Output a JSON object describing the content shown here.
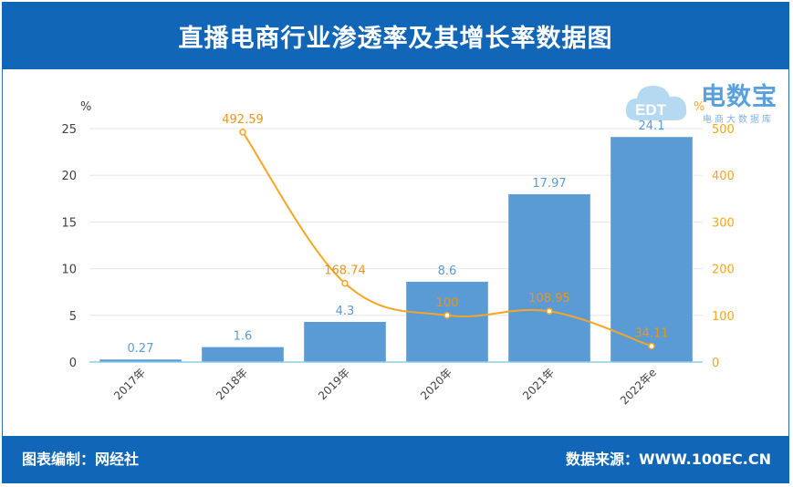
{
  "header": {
    "title": "直播电商行业渗透率及其增长率数据图"
  },
  "footer": {
    "left": "图表编制：网经社",
    "right": "数据来源：WWW.100EC.CN"
  },
  "logo": {
    "main": "电数宝",
    "sub": "电商大数据库",
    "badge": "EDT"
  },
  "chart_data": {
    "type": "bar",
    "categories": [
      "2017年",
      "2018年",
      "2019年",
      "2020年",
      "2021年",
      "2022年e"
    ],
    "series": [
      {
        "values": [
          0.27,
          1.6,
          4.3,
          8.6,
          17.97,
          24.1
        ],
        "axis": "left",
        "labels": [
          "0.27",
          "1.6",
          "4.3",
          "8.6",
          "17.97",
          "24.1"
        ]
      },
      {
        "values": [
          null,
          492.59,
          168.74,
          100,
          108.95,
          34.11
        ],
        "axis": "right",
        "type": "line",
        "labels": [
          "",
          "492.59",
          "168.74",
          "100",
          "108.95",
          "34.11"
        ]
      }
    ],
    "ylabel_left": "%",
    "ylabel_right": "%",
    "ylim_left": [
      0,
      25
    ],
    "ylim_right": [
      0,
      500
    ],
    "yticks_left": [
      "0",
      "5",
      "10",
      "15",
      "20",
      "25"
    ],
    "yticks_right": [
      "0",
      "100",
      "200",
      "300",
      "400",
      "500"
    ],
    "grid": true,
    "colors": {
      "bar": "#5b9bd5",
      "bar_label": "#5b9bd5",
      "line": "#f5a623",
      "line_label": "#e8961c",
      "axis": "#8ecbe6"
    }
  }
}
